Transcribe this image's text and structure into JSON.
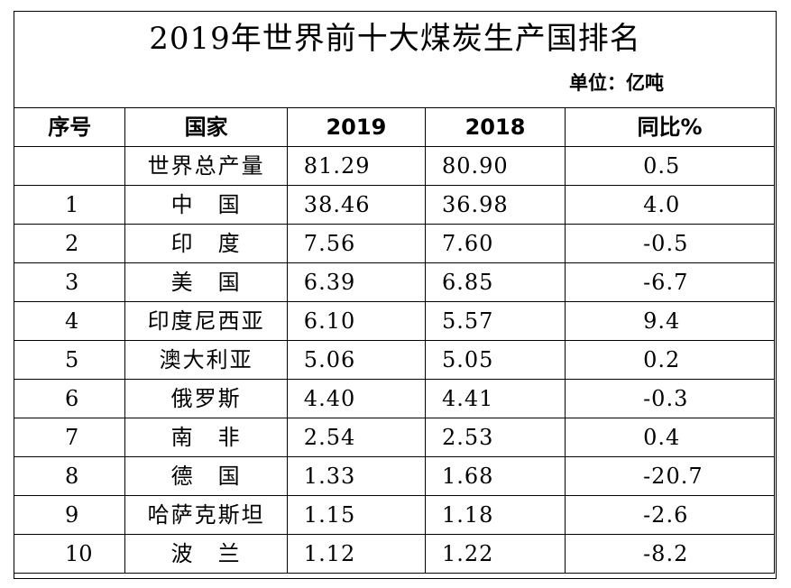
{
  "title": "2019年世界前十大煤炭生产国排名",
  "unit": "单位：亿吨",
  "headers": {
    "index": "序号",
    "country": "国家",
    "y2019": "2019",
    "y2018": "2018",
    "yoy": "同比%"
  },
  "rows": [
    {
      "index": "",
      "country": "世界总产量",
      "y2019": "81.29",
      "y2018": "80.90",
      "yoy": "0.5"
    },
    {
      "index": "1",
      "country": "中　国",
      "y2019": "38.46",
      "y2018": "36.98",
      "yoy": "4.0"
    },
    {
      "index": "2",
      "country": "印　度",
      "y2019": "7.56",
      "y2018": "7.60",
      "yoy": "-0.5"
    },
    {
      "index": "3",
      "country": "美　国",
      "y2019": "6.39",
      "y2018": "6.85",
      "yoy": "-6.7"
    },
    {
      "index": "4",
      "country": "印度尼西亚",
      "y2019": "6.10",
      "y2018": "5.57",
      "yoy": "9.4"
    },
    {
      "index": "5",
      "country": "澳大利亚",
      "y2019": "5.06",
      "y2018": "5.05",
      "yoy": "0.2"
    },
    {
      "index": "6",
      "country": "俄罗斯",
      "y2019": "4.40",
      "y2018": "4.41",
      "yoy": "-0.3"
    },
    {
      "index": "7",
      "country": "南　非",
      "y2019": "2.54",
      "y2018": "2.53",
      "yoy": "0.4"
    },
    {
      "index": "8",
      "country": "德　国",
      "y2019": "1.33",
      "y2018": "1.68",
      "yoy": "-20.7"
    },
    {
      "index": "9",
      "country": "哈萨克斯坦",
      "y2019": "1.15",
      "y2018": "1.18",
      "yoy": "-2.6"
    },
    {
      "index": "10",
      "country": "波　兰",
      "y2019": "1.12",
      "y2018": "1.22",
      "yoy": "-8.2"
    }
  ]
}
